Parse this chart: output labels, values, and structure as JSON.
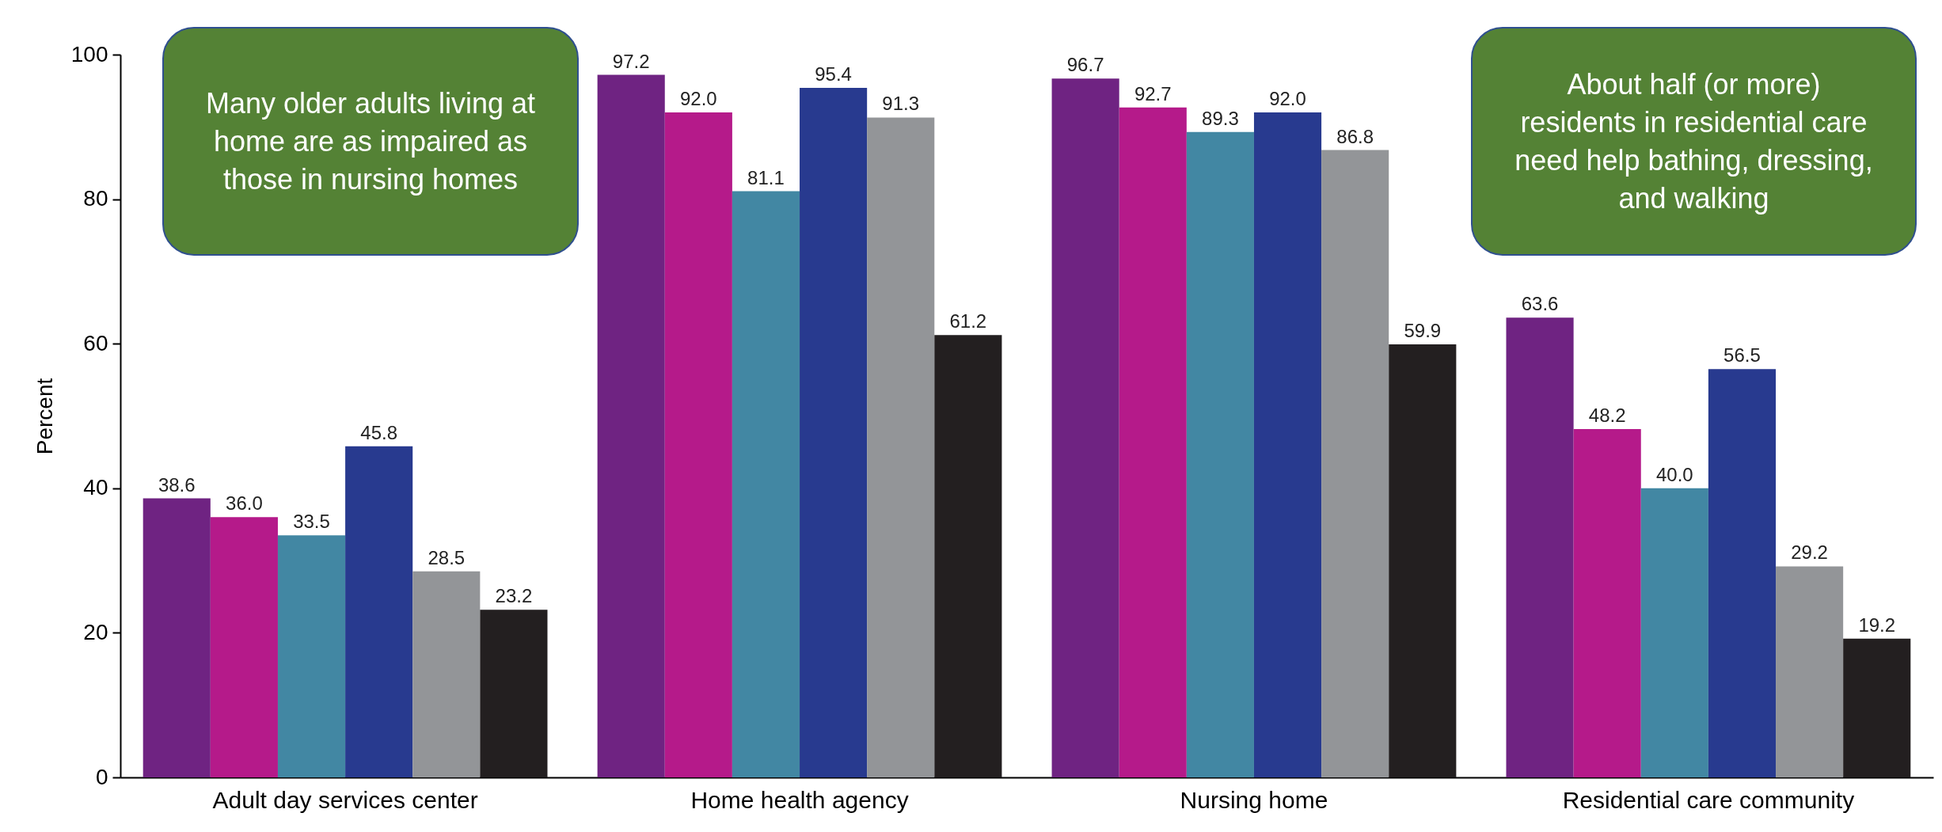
{
  "chart_data": {
    "type": "bar",
    "ylabel": "Percent",
    "categories": [
      "Adult day services center",
      "Home health agency",
      "Nursing home",
      "Residential care community"
    ],
    "series": [
      {
        "color": "#6f2382",
        "values": [
          38.6,
          97.2,
          96.7,
          63.6
        ]
      },
      {
        "color": "#b51a8a",
        "values": [
          36.0,
          92.0,
          92.7,
          48.2
        ]
      },
      {
        "color": "#4287a3",
        "values": [
          33.5,
          81.1,
          89.3,
          40.0
        ]
      },
      {
        "color": "#283a8f",
        "values": [
          45.8,
          95.4,
          92.0,
          56.5
        ]
      },
      {
        "color": "#939598",
        "values": [
          28.5,
          91.3,
          86.8,
          29.2
        ]
      },
      {
        "color": "#231f20",
        "values": [
          23.2,
          61.2,
          59.9,
          19.2
        ]
      }
    ],
    "value_labels": [
      [
        "38.6",
        "97.2",
        "96.7",
        "63.6"
      ],
      [
        "36.0",
        "92.0",
        "92.7",
        "48.2"
      ],
      [
        "33.5",
        "81.1",
        "89.3",
        "40.0"
      ],
      [
        "45.8",
        "95.4",
        "92.0",
        "56.5"
      ],
      [
        "28.5",
        "91.3",
        "86.8",
        "29.2"
      ],
      [
        "23.2",
        "61.2",
        "59.9",
        "19.2"
      ]
    ],
    "ylim": [
      0,
      100
    ],
    "yticks": [
      0,
      20,
      40,
      60,
      80,
      100
    ],
    "grid": false,
    "legend": false,
    "annotations": [
      "Many older adults living at home are as impaired as those in nursing homes",
      "About half (or more) residents in residential care need help bathing, dressing, and walking"
    ]
  }
}
